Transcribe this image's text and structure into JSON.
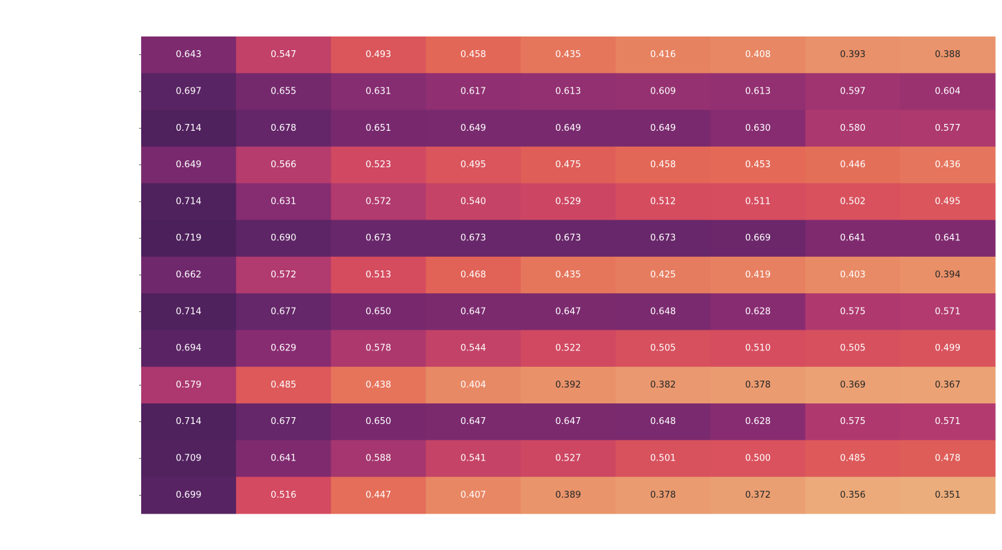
{
  "chart_data": {
    "type": "heatmap",
    "title": "",
    "xlabel": "",
    "ylabel": "",
    "colormap": "flare",
    "value_range": [
      0.351,
      0.719
    ],
    "rows": [
      [
        0.643,
        0.547,
        0.493,
        0.458,
        0.435,
        0.416,
        0.408,
        0.393,
        0.388
      ],
      [
        0.697,
        0.655,
        0.631,
        0.617,
        0.613,
        0.609,
        0.613,
        0.597,
        0.604
      ],
      [
        0.714,
        0.678,
        0.651,
        0.649,
        0.649,
        0.649,
        0.63,
        0.58,
        0.577
      ],
      [
        0.649,
        0.566,
        0.523,
        0.495,
        0.475,
        0.458,
        0.453,
        0.446,
        0.436
      ],
      [
        0.714,
        0.631,
        0.572,
        0.54,
        0.529,
        0.512,
        0.511,
        0.502,
        0.495
      ],
      [
        0.719,
        0.69,
        0.673,
        0.673,
        0.673,
        0.673,
        0.669,
        0.641,
        0.641
      ],
      [
        0.662,
        0.572,
        0.513,
        0.468,
        0.435,
        0.425,
        0.419,
        0.403,
        0.394
      ],
      [
        0.714,
        0.677,
        0.65,
        0.647,
        0.647,
        0.648,
        0.628,
        0.575,
        0.571
      ],
      [
        0.694,
        0.629,
        0.578,
        0.544,
        0.522,
        0.505,
        0.51,
        0.505,
        0.499
      ],
      [
        0.579,
        0.485,
        0.438,
        0.404,
        0.392,
        0.382,
        0.378,
        0.369,
        0.367
      ],
      [
        0.714,
        0.677,
        0.65,
        0.647,
        0.647,
        0.648,
        0.628,
        0.575,
        0.571
      ],
      [
        0.709,
        0.641,
        0.588,
        0.541,
        0.527,
        0.501,
        0.5,
        0.485,
        0.478
      ],
      [
        0.699,
        0.516,
        0.447,
        0.407,
        0.389,
        0.378,
        0.372,
        0.356,
        0.351
      ]
    ]
  }
}
